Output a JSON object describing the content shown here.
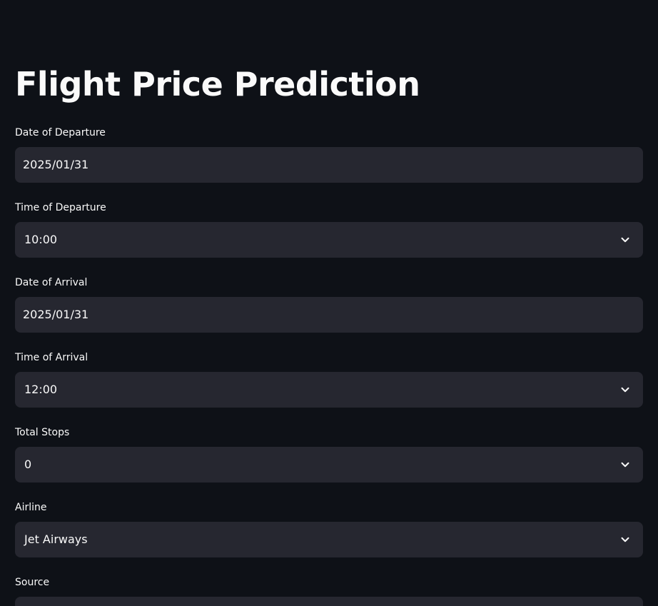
{
  "title": "Flight Price Prediction",
  "fields": [
    {
      "label": "Date of Departure",
      "value": "2025/01/31",
      "kind": "date"
    },
    {
      "label": "Time of Departure",
      "value": "10:00",
      "kind": "select"
    },
    {
      "label": "Date of Arrival",
      "value": "2025/01/31",
      "kind": "date"
    },
    {
      "label": "Time of Arrival",
      "value": "12:00",
      "kind": "select"
    },
    {
      "label": "Total Stops",
      "value": "0",
      "kind": "select"
    },
    {
      "label": "Airline",
      "value": "Jet Airways",
      "kind": "select"
    },
    {
      "label": "Source",
      "value": "",
      "kind": "select"
    }
  ],
  "colors": {
    "background": "#0e1117",
    "control": "#262730",
    "text": "#fafafa"
  },
  "icons": {
    "select_chevron": "chevron-down-icon"
  }
}
